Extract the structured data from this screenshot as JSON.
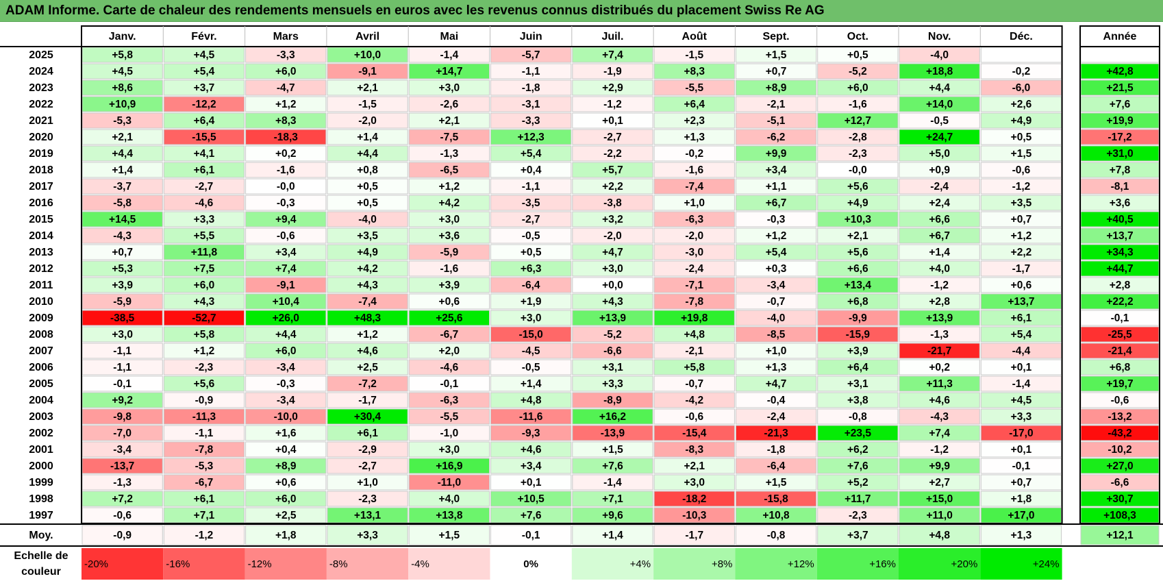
{
  "title": "ADAM Informe. Carte de chaleur des rendements mensuels en euros avec les revenus connus distribués du placement Swiss Re AG",
  "chart_data": {
    "type": "heatmap",
    "title": "ADAM Informe. Carte de chaleur des rendements mensuels en euros avec les revenus connus distribués du placement Swiss Re AG",
    "columns": [
      "Janv.",
      "Févr.",
      "Mars",
      "Avril",
      "Mai",
      "Juin",
      "Juil.",
      "Août",
      "Sept.",
      "Oct.",
      "Nov.",
      "Déc."
    ],
    "annual_header": "Année",
    "rows": [
      {
        "year": "2025",
        "values": [
          "+5,8",
          "+4,5",
          "-3,3",
          "+10,0",
          "-1,4",
          "-5,7",
          "+7,4",
          "-1,5",
          "+1,5",
          "+0,5",
          "-4,0",
          ""
        ],
        "annual": ""
      },
      {
        "year": "2024",
        "values": [
          "+4,5",
          "+5,4",
          "+6,0",
          "-9,1",
          "+14,7",
          "-1,1",
          "-1,9",
          "+8,3",
          "+0,7",
          "-5,2",
          "+18,8",
          "-0,2"
        ],
        "annual": "+42,8"
      },
      {
        "year": "2023",
        "values": [
          "+8,6",
          "+3,7",
          "-4,7",
          "+2,1",
          "+3,0",
          "-1,8",
          "+2,9",
          "-5,5",
          "+8,9",
          "+6,0",
          "+4,4",
          "-6,0"
        ],
        "annual": "+21,5"
      },
      {
        "year": "2022",
        "values": [
          "+10,9",
          "-12,2",
          "+1,2",
          "-1,5",
          "-2,6",
          "-3,1",
          "-1,2",
          "+6,4",
          "-2,1",
          "-1,6",
          "+14,0",
          "+2,6"
        ],
        "annual": "+7,6"
      },
      {
        "year": "2021",
        "values": [
          "-5,3",
          "+6,4",
          "+8,3",
          "-2,0",
          "+2,1",
          "-3,3",
          "+0,1",
          "+2,3",
          "-5,1",
          "+12,7",
          "-0,5",
          "+4,9"
        ],
        "annual": "+19,9"
      },
      {
        "year": "2020",
        "values": [
          "+2,1",
          "-15,5",
          "-18,3",
          "+1,4",
          "-7,5",
          "+12,3",
          "-2,7",
          "+1,3",
          "-6,2",
          "-2,8",
          "+24,7",
          "+0,5"
        ],
        "annual": "-17,2"
      },
      {
        "year": "2019",
        "values": [
          "+4,4",
          "+4,1",
          "+0,2",
          "+4,4",
          "-1,3",
          "+5,4",
          "-2,2",
          "-0,2",
          "+9,9",
          "-2,3",
          "+5,0",
          "+1,5"
        ],
        "annual": "+31,0"
      },
      {
        "year": "2018",
        "values": [
          "+1,4",
          "+6,1",
          "-1,6",
          "+0,8",
          "-6,5",
          "+0,4",
          "+5,7",
          "-1,6",
          "+3,4",
          "-0,0",
          "+0,9",
          "-0,6"
        ],
        "annual": "+7,8"
      },
      {
        "year": "2017",
        "values": [
          "-3,7",
          "-2,7",
          "-0,0",
          "+0,5",
          "+1,2",
          "-1,1",
          "+2,2",
          "-7,4",
          "+1,1",
          "+5,6",
          "-2,4",
          "-1,2"
        ],
        "annual": "-8,1"
      },
      {
        "year": "2016",
        "values": [
          "-5,8",
          "-4,6",
          "-0,3",
          "+0,5",
          "+4,2",
          "-3,5",
          "-3,8",
          "+1,0",
          "+6,7",
          "+4,9",
          "+2,4",
          "+3,5"
        ],
        "annual": "+3,6"
      },
      {
        "year": "2015",
        "values": [
          "+14,5",
          "+3,3",
          "+9,4",
          "-4,0",
          "+3,0",
          "-2,7",
          "+3,2",
          "-6,3",
          "-0,3",
          "+10,3",
          "+6,6",
          "+0,7"
        ],
        "annual": "+40,5"
      },
      {
        "year": "2014",
        "values": [
          "-4,3",
          "+5,5",
          "-0,6",
          "+3,5",
          "+3,6",
          "-0,5",
          "-2,0",
          "-2,0",
          "+1,2",
          "+2,1",
          "+6,7",
          "+1,2"
        ],
        "annual": "+13,7"
      },
      {
        "year": "2013",
        "values": [
          "+0,7",
          "+11,8",
          "+3,4",
          "+4,9",
          "-5,9",
          "+0,5",
          "+4,7",
          "-3,0",
          "+5,4",
          "+5,6",
          "+1,4",
          "+2,2"
        ],
        "annual": "+34,3"
      },
      {
        "year": "2012",
        "values": [
          "+5,3",
          "+7,5",
          "+7,4",
          "+4,2",
          "-1,6",
          "+6,3",
          "+3,0",
          "-2,4",
          "+0,3",
          "+6,6",
          "+4,0",
          "-1,7"
        ],
        "annual": "+44,7"
      },
      {
        "year": "2011",
        "values": [
          "+3,9",
          "+6,0",
          "-9,1",
          "+4,3",
          "+3,9",
          "-6,4",
          "+0,0",
          "-7,1",
          "-3,4",
          "+13,4",
          "-1,2",
          "+0,6"
        ],
        "annual": "+2,8"
      },
      {
        "year": "2010",
        "values": [
          "-5,9",
          "+4,3",
          "+10,4",
          "-7,4",
          "+0,6",
          "+1,9",
          "+4,3",
          "-7,8",
          "-0,7",
          "+6,8",
          "+2,8",
          "+13,7"
        ],
        "annual": "+22,2"
      },
      {
        "year": "2009",
        "values": [
          "-38,5",
          "-52,7",
          "+26,0",
          "+48,3",
          "+25,6",
          "+3,0",
          "+13,9",
          "+19,8",
          "-4,0",
          "-9,9",
          "+13,9",
          "+6,1"
        ],
        "annual": "-0,1"
      },
      {
        "year": "2008",
        "values": [
          "+3,0",
          "+5,8",
          "+4,4",
          "+1,2",
          "-6,7",
          "-15,0",
          "-5,2",
          "+4,8",
          "-8,5",
          "-15,9",
          "-1,3",
          "+5,4"
        ],
        "annual": "-25,5"
      },
      {
        "year": "2007",
        "values": [
          "-1,1",
          "+1,2",
          "+6,0",
          "+4,6",
          "+2,0",
          "-4,5",
          "-6,6",
          "-2,1",
          "+1,0",
          "+3,9",
          "-21,7",
          "-4,4"
        ],
        "annual": "-21,4"
      },
      {
        "year": "2006",
        "values": [
          "-1,1",
          "-2,3",
          "-3,4",
          "+2,5",
          "-4,6",
          "-0,5",
          "+3,1",
          "+5,8",
          "+1,3",
          "+6,4",
          "+0,2",
          "+0,1"
        ],
        "annual": "+6,8"
      },
      {
        "year": "2005",
        "values": [
          "-0,1",
          "+5,6",
          "-0,3",
          "-7,2",
          "-0,1",
          "+1,4",
          "+3,3",
          "-0,7",
          "+4,7",
          "+3,1",
          "+11,3",
          "-1,4"
        ],
        "annual": "+19,7"
      },
      {
        "year": "2004",
        "values": [
          "+9,2",
          "-0,9",
          "-3,4",
          "-1,7",
          "-6,3",
          "+4,8",
          "-8,9",
          "-4,2",
          "-0,4",
          "+3,8",
          "+4,6",
          "+4,5"
        ],
        "annual": "-0,6"
      },
      {
        "year": "2003",
        "values": [
          "-9,8",
          "-11,3",
          "-10,0",
          "+30,4",
          "-5,5",
          "-11,6",
          "+16,2",
          "-0,6",
          "-2,4",
          "-0,8",
          "-4,3",
          "+3,3"
        ],
        "annual": "-13,2"
      },
      {
        "year": "2002",
        "values": [
          "-7,0",
          "-1,1",
          "+1,6",
          "+6,1",
          "-1,0",
          "-9,3",
          "-13,9",
          "-15,4",
          "-21,3",
          "+23,5",
          "+7,4",
          "-17,0"
        ],
        "annual": "-43,2"
      },
      {
        "year": "2001",
        "values": [
          "-3,4",
          "-7,8",
          "+0,4",
          "-2,9",
          "+3,0",
          "+4,6",
          "+1,5",
          "-8,3",
          "-1,8",
          "+6,2",
          "-1,2",
          "+0,1"
        ],
        "annual": "-10,2"
      },
      {
        "year": "2000",
        "values": [
          "-13,7",
          "-5,3",
          "+8,9",
          "-2,7",
          "+16,9",
          "+3,4",
          "+7,6",
          "+2,1",
          "-6,4",
          "+7,6",
          "+9,9",
          "-0,1"
        ],
        "annual": "+27,0"
      },
      {
        "year": "1999",
        "values": [
          "-1,3",
          "-6,7",
          "+0,6",
          "+1,0",
          "-11,0",
          "+0,1",
          "-1,4",
          "+3,0",
          "+1,5",
          "+5,2",
          "+2,7",
          "+0,7"
        ],
        "annual": "-6,6"
      },
      {
        "year": "1998",
        "values": [
          "+7,2",
          "+6,1",
          "+6,0",
          "-2,3",
          "+4,0",
          "+10,5",
          "+7,1",
          "-18,2",
          "-15,8",
          "+11,7",
          "+15,0",
          "+1,8"
        ],
        "annual": "+30,7"
      },
      {
        "year": "1997",
        "values": [
          "-0,6",
          "+7,1",
          "+2,5",
          "+13,1",
          "+13,8",
          "+7,6",
          "+9,6",
          "-10,3",
          "+10,8",
          "-2,3",
          "+11,0",
          "+17,0"
        ],
        "annual": "+108,3"
      }
    ],
    "average": {
      "label": "Moy.",
      "values": [
        "-0,9",
        "-1,2",
        "+1,8",
        "+3,3",
        "+1,5",
        "-0,1",
        "+1,4",
        "-1,7",
        "-0,8",
        "+3,7",
        "+4,8",
        "+1,3"
      ],
      "annual": "+12,1"
    },
    "scale": {
      "label_line1": "Echelle de",
      "label_line2": "couleur",
      "steps": [
        {
          "label": "-20%",
          "value": -20
        },
        {
          "label": "-16%",
          "value": -16
        },
        {
          "label": "-12%",
          "value": -12
        },
        {
          "label": "-8%",
          "value": -8
        },
        {
          "label": "-4%",
          "value": -4
        },
        {
          "label": "0%",
          "value": 0
        },
        {
          "label": "+4%",
          "value": 4
        },
        {
          "label": "+8%",
          "value": 8
        },
        {
          "label": "+12%",
          "value": 12
        },
        {
          "label": "+16%",
          "value": 16
        },
        {
          "label": "+20%",
          "value": 20
        },
        {
          "label": "+24%",
          "value": 24
        }
      ]
    },
    "colors": {
      "negative_max": "#ff0000",
      "neutral": "#ffffff",
      "positive_max": "#00ee00",
      "title_bar": "#6fbf6a"
    }
  }
}
